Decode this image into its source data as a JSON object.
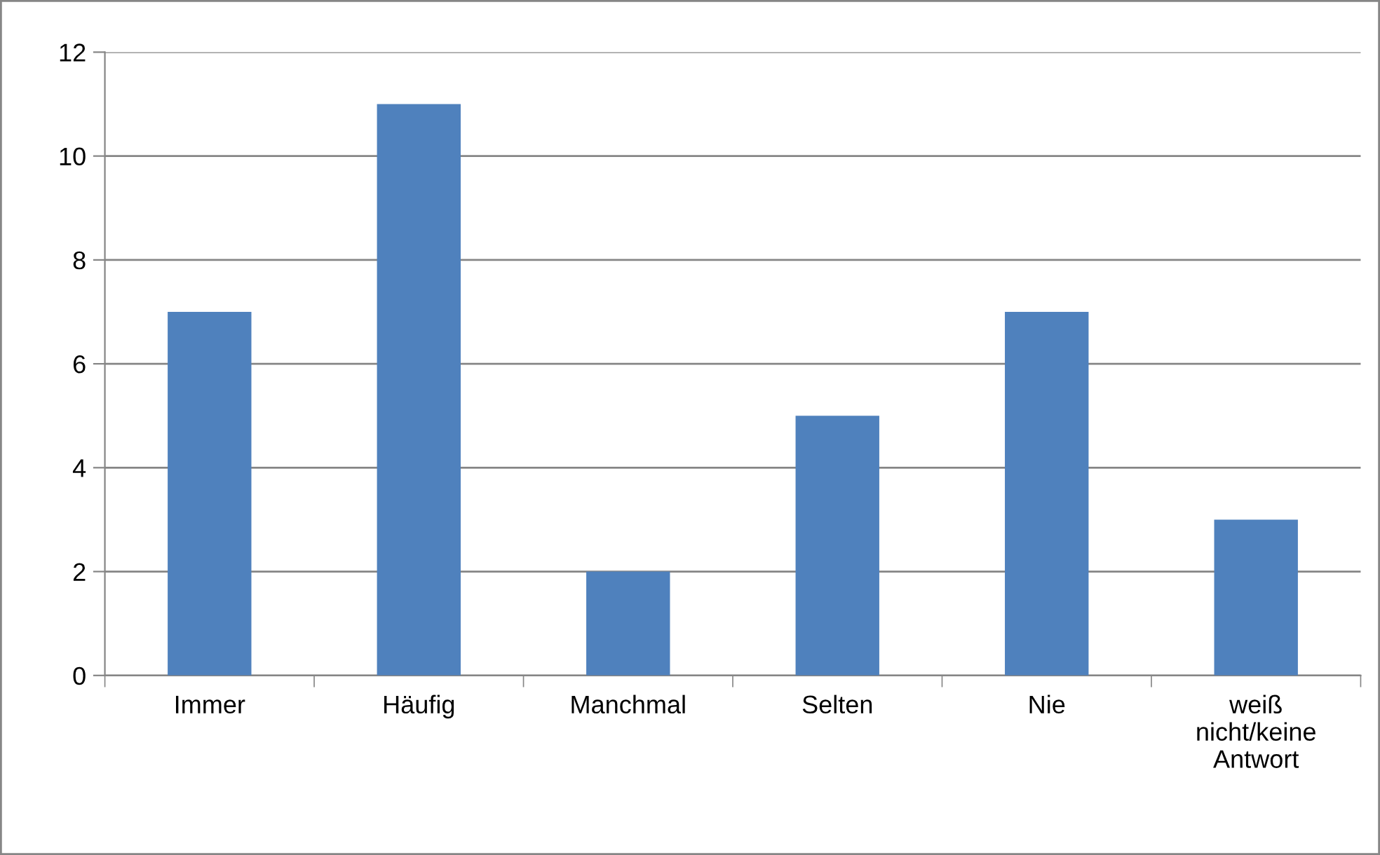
{
  "chart_data": {
    "type": "bar",
    "categories": [
      "Immer",
      "Häufig",
      "Manchmal",
      "Selten",
      "Nie",
      "weiß\nnicht/keine\nAntwort"
    ],
    "values": [
      7,
      11,
      2,
      5,
      7,
      3
    ],
    "color": "#4f81bd",
    "ylim": [
      0,
      12
    ],
    "yticks": [
      0,
      2,
      4,
      6,
      8,
      10,
      12
    ],
    "grid": "y",
    "legend": false
  }
}
